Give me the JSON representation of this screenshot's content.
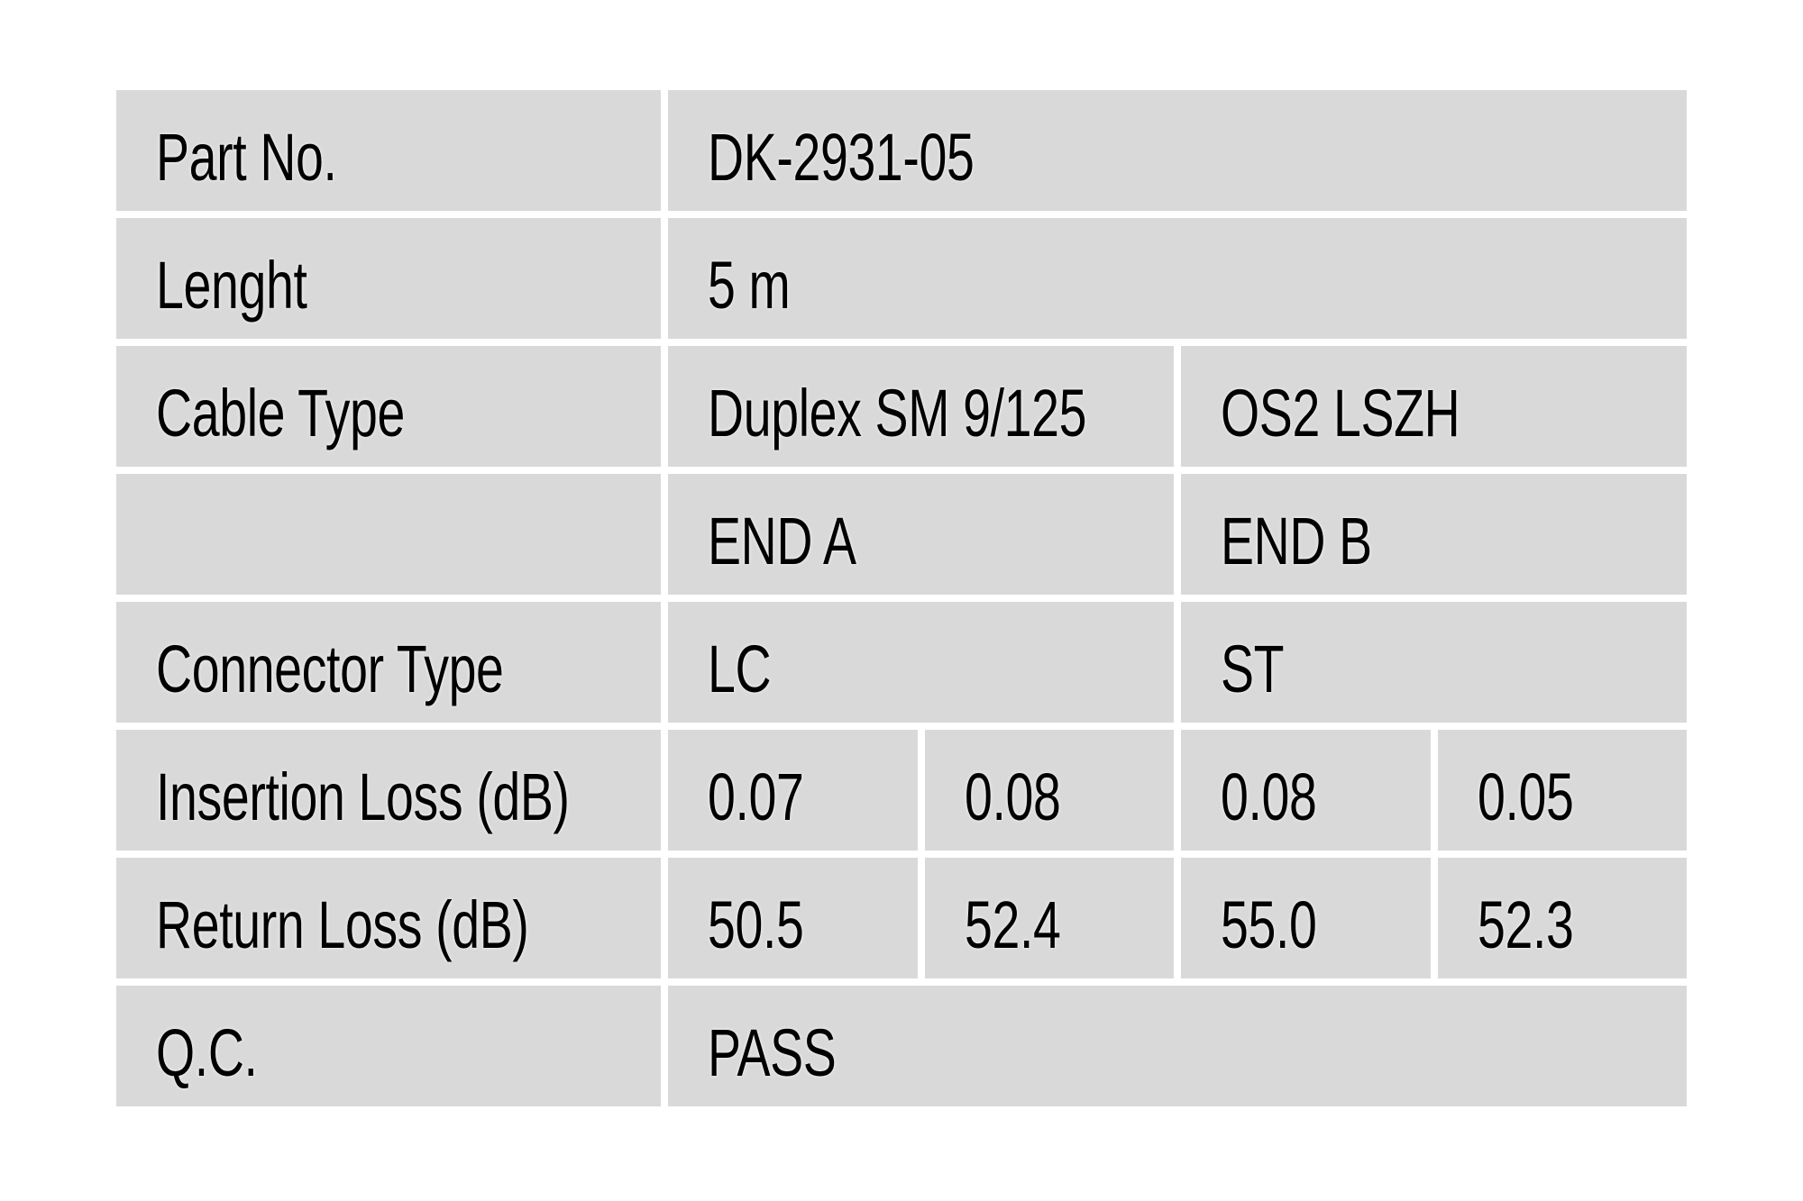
{
  "page": {
    "background_color": "#ffffff",
    "description": "Fiber optic patch cable specification and QC test table"
  },
  "table": {
    "cell_background_color": "#d9d9d9",
    "text_color": "#000000",
    "rows": [
      {
        "label": "Part No.",
        "values": [
          "DK-2931-05"
        ]
      },
      {
        "label": "Lenght",
        "values": [
          "5 m"
        ]
      },
      {
        "label": "Cable Type",
        "values": [
          "Duplex SM 9/125",
          "OS2 LSZH"
        ]
      },
      {
        "label": "",
        "values": [
          "END A",
          "END B"
        ]
      },
      {
        "label": "Connector Type",
        "values": [
          "LC",
          "ST"
        ]
      },
      {
        "label": "Insertion Loss (dB)",
        "values": [
          "0.07",
          "0.08",
          "0.08",
          "0.05"
        ]
      },
      {
        "label": "Return Loss (dB)",
        "values": [
          "50.5",
          "52.4",
          "55.0",
          "52.3"
        ]
      },
      {
        "label": "Q.C.",
        "values": [
          "PASS"
        ]
      }
    ]
  }
}
